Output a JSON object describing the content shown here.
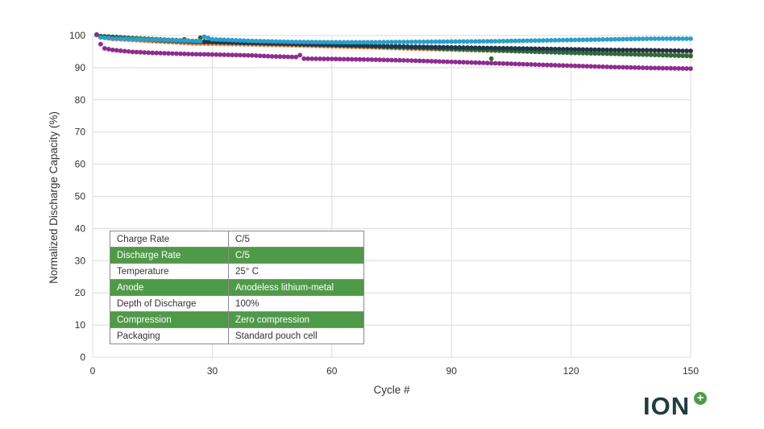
{
  "chart_data": {
    "type": "scatter",
    "title": "",
    "xlabel": "Cycle #",
    "ylabel": "Normalized Discharge Capacity (%)",
    "xlim": [
      0,
      150
    ],
    "ylim": [
      0,
      100
    ],
    "xticks": [
      0,
      30,
      60,
      90,
      120,
      150
    ],
    "yticks": [
      0,
      10,
      20,
      30,
      40,
      50,
      60,
      70,
      80,
      90,
      100
    ],
    "grid": true,
    "legend": "none",
    "series": [
      {
        "color": "#e8894a",
        "points": [
          [
            1,
            100.2
          ],
          [
            2,
            99.5
          ],
          [
            5,
            98.9
          ],
          [
            10,
            98.6
          ],
          [
            15,
            98.2
          ],
          [
            20,
            97.9
          ],
          [
            25,
            97.5
          ],
          [
            30,
            97.4
          ],
          [
            40,
            97.2
          ],
          [
            50,
            96.9
          ],
          [
            60,
            96.6
          ],
          [
            70,
            96.3
          ],
          [
            80,
            95.9
          ],
          [
            90,
            95.6
          ],
          [
            100,
            95.3
          ],
          [
            110,
            95.0
          ],
          [
            120,
            94.8
          ],
          [
            130,
            94.5
          ],
          [
            140,
            94.2
          ],
          [
            150,
            94.0
          ]
        ],
        "outliers": [
          [
            100,
            95.5
          ]
        ]
      },
      {
        "color": "#2e6b3a",
        "points": [
          [
            1,
            100.2
          ],
          [
            2,
            99.8
          ],
          [
            5,
            99.6
          ],
          [
            10,
            99.2
          ],
          [
            15,
            98.9
          ],
          [
            20,
            98.6
          ],
          [
            25,
            98.3
          ],
          [
            30,
            98.1
          ],
          [
            40,
            97.8
          ],
          [
            50,
            97.4
          ],
          [
            60,
            97.0
          ],
          [
            70,
            96.6
          ],
          [
            80,
            96.2
          ],
          [
            90,
            95.8
          ],
          [
            100,
            95.4
          ],
          [
            110,
            95.0
          ],
          [
            120,
            94.6
          ],
          [
            130,
            94.3
          ],
          [
            140,
            94.0
          ],
          [
            150,
            93.6
          ]
        ],
        "outliers": [
          [
            23,
            98.8
          ],
          [
            27,
            99.3
          ],
          [
            100,
            92.8
          ]
        ]
      },
      {
        "color": "#20364a",
        "points": [
          [
            1,
            100.2
          ],
          [
            2,
            99.6
          ],
          [
            5,
            99.3
          ],
          [
            10,
            98.9
          ],
          [
            15,
            98.6
          ],
          [
            20,
            98.3
          ],
          [
            25,
            98.0
          ],
          [
            30,
            97.9
          ],
          [
            40,
            97.6
          ],
          [
            50,
            97.3
          ],
          [
            60,
            97.0
          ],
          [
            70,
            96.8
          ],
          [
            80,
            96.5
          ],
          [
            90,
            96.3
          ],
          [
            100,
            96.1
          ],
          [
            110,
            95.9
          ],
          [
            120,
            95.7
          ],
          [
            130,
            95.5
          ],
          [
            140,
            95.4
          ],
          [
            150,
            95.2
          ]
        ],
        "outliers": []
      },
      {
        "color": "#2a9fcc",
        "points": [
          [
            1,
            100.2
          ],
          [
            2,
            99.4
          ],
          [
            5,
            99.1
          ],
          [
            10,
            98.9
          ],
          [
            15,
            98.7
          ],
          [
            20,
            98.5
          ],
          [
            25,
            98.3
          ],
          [
            27,
            98.2
          ],
          [
            28,
            99.6
          ],
          [
            30,
            98.8
          ],
          [
            40,
            98.3
          ],
          [
            50,
            98.0
          ],
          [
            60,
            97.9
          ],
          [
            70,
            97.9
          ],
          [
            80,
            98.0
          ],
          [
            90,
            98.1
          ],
          [
            100,
            98.2
          ],
          [
            110,
            98.4
          ],
          [
            120,
            98.6
          ],
          [
            130,
            98.8
          ],
          [
            140,
            99.0
          ],
          [
            150,
            99.0
          ]
        ],
        "outliers": []
      },
      {
        "color": "#8e2d8f",
        "points": [
          [
            1,
            100.3
          ],
          [
            2,
            97.3
          ],
          [
            3,
            96.0
          ],
          [
            5,
            95.5
          ],
          [
            10,
            94.9
          ],
          [
            15,
            94.6
          ],
          [
            20,
            94.4
          ],
          [
            25,
            94.2
          ],
          [
            30,
            94.1
          ],
          [
            40,
            93.8
          ],
          [
            45,
            93.5
          ],
          [
            51,
            93.3
          ],
          [
            52,
            93.9
          ],
          [
            53,
            92.8
          ],
          [
            60,
            92.7
          ],
          [
            70,
            92.5
          ],
          [
            80,
            92.2
          ],
          [
            90,
            91.8
          ],
          [
            100,
            91.4
          ],
          [
            110,
            91.0
          ],
          [
            120,
            90.6
          ],
          [
            130,
            90.2
          ],
          [
            140,
            89.9
          ],
          [
            150,
            89.7
          ]
        ],
        "outliers": []
      }
    ]
  },
  "table": {
    "rows": [
      {
        "key": "Charge Rate",
        "value": "C/5"
      },
      {
        "key": "Discharge Rate",
        "value": "C/5"
      },
      {
        "key": "Temperature",
        "value": "25° C"
      },
      {
        "key": "Anode",
        "value": "Anodeless lithium-metal"
      },
      {
        "key": "Depth of Discharge",
        "value": "100%"
      },
      {
        "key": "Compression",
        "value": "Zero compression"
      },
      {
        "key": "Packaging",
        "value": "Standard pouch cell"
      }
    ]
  },
  "logo": {
    "text": "ION",
    "plus": "+"
  },
  "colors": {
    "table_shade": "#4e9a48",
    "logo_text": "#1f3d40",
    "logo_plus": "#4e9a48"
  }
}
